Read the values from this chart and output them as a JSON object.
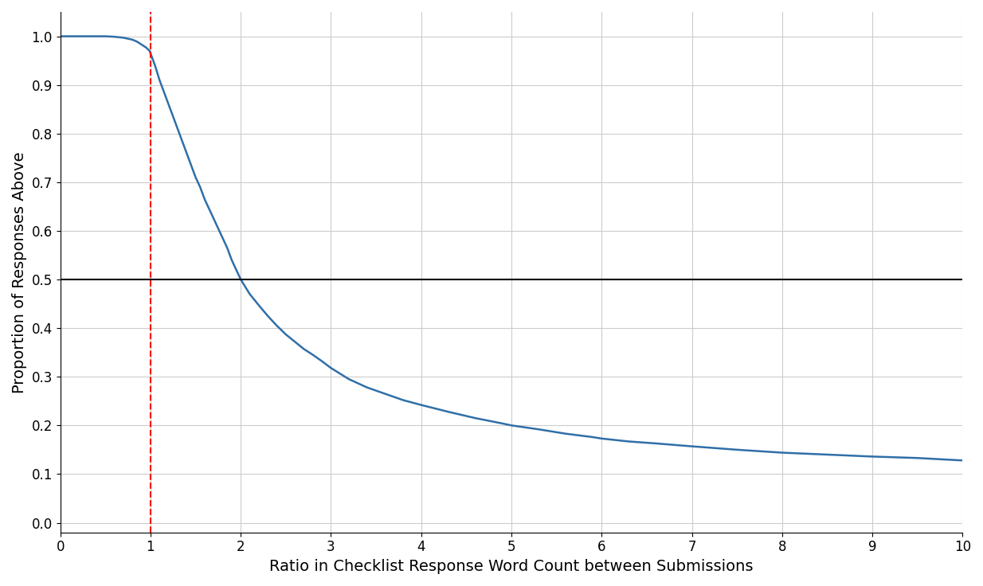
{
  "title": "",
  "xlabel": "Ratio in Checklist Response Word Count between Submissions",
  "ylabel": "Proportion of Responses Above",
  "xlim": [
    0,
    10
  ],
  "ylim": [
    -0.02,
    1.05
  ],
  "xticks": [
    0,
    1,
    2,
    3,
    4,
    5,
    6,
    7,
    8,
    9,
    10
  ],
  "yticks": [
    0.0,
    0.1,
    0.2,
    0.3,
    0.4,
    0.5,
    0.6,
    0.7,
    0.8,
    0.9,
    1.0
  ],
  "vline_x": 1.0,
  "hline_y": 0.5,
  "line_color": "#2f6fa8",
  "vline_color": "red",
  "hline_color": "black",
  "background_color": "#ffffff",
  "grid_color": "#cccccc",
  "curve_points_x": [
    0.0,
    0.1,
    0.2,
    0.3,
    0.4,
    0.5,
    0.6,
    0.65,
    0.7,
    0.75,
    0.8,
    0.85,
    0.9,
    0.95,
    0.99,
    1.0,
    1.01,
    1.05,
    1.1,
    1.15,
    1.2,
    1.25,
    1.3,
    1.35,
    1.4,
    1.45,
    1.5,
    1.55,
    1.6,
    1.65,
    1.7,
    1.75,
    1.8,
    1.85,
    1.9,
    1.95,
    2.0,
    2.1,
    2.2,
    2.3,
    2.4,
    2.5,
    2.6,
    2.7,
    2.8,
    2.9,
    3.0,
    3.2,
    3.4,
    3.6,
    3.8,
    4.0,
    4.3,
    4.6,
    4.9,
    5.0,
    5.3,
    5.6,
    5.9,
    6.0,
    6.3,
    6.6,
    7.0,
    7.5,
    8.0,
    8.5,
    9.0,
    9.5,
    10.0
  ],
  "curve_points_y": [
    1.0,
    1.0,
    1.0,
    1.0,
    1.0,
    1.0,
    0.999,
    0.998,
    0.997,
    0.995,
    0.993,
    0.989,
    0.983,
    0.977,
    0.97,
    0.965,
    0.96,
    0.94,
    0.91,
    0.885,
    0.86,
    0.835,
    0.81,
    0.785,
    0.76,
    0.735,
    0.71,
    0.69,
    0.665,
    0.645,
    0.625,
    0.605,
    0.585,
    0.565,
    0.54,
    0.52,
    0.5,
    0.47,
    0.447,
    0.425,
    0.405,
    0.387,
    0.372,
    0.357,
    0.345,
    0.332,
    0.318,
    0.295,
    0.278,
    0.265,
    0.252,
    0.242,
    0.228,
    0.215,
    0.204,
    0.2,
    0.192,
    0.183,
    0.176,
    0.173,
    0.167,
    0.163,
    0.157,
    0.15,
    0.144,
    0.14,
    0.136,
    0.133,
    0.128
  ]
}
